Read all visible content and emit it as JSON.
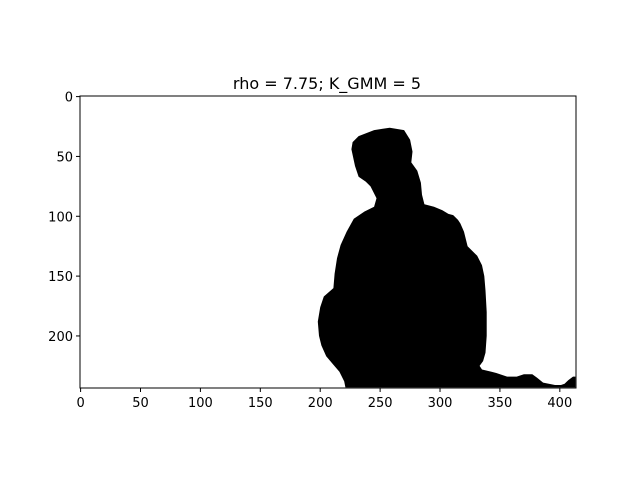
{
  "figure": {
    "title": "rho = 7.75; K_GMM = 5",
    "colors": {
      "background": "#ffffff",
      "mask": "#000000",
      "axis": "#000000"
    }
  },
  "image_extent": {
    "x": [
      -0.5,
      413.5
    ],
    "y": [
      243.5,
      -0.5
    ]
  },
  "x_ticks": [
    {
      "value": 0,
      "label": "0"
    },
    {
      "value": 50,
      "label": "50"
    },
    {
      "value": 100,
      "label": "100"
    },
    {
      "value": 150,
      "label": "150"
    },
    {
      "value": 200,
      "label": "200"
    },
    {
      "value": 250,
      "label": "250"
    },
    {
      "value": 300,
      "label": "300"
    },
    {
      "value": 350,
      "label": "350"
    },
    {
      "value": 400,
      "label": "400"
    }
  ],
  "y_ticks": [
    {
      "value": 0,
      "label": "0"
    },
    {
      "value": 50,
      "label": "50"
    },
    {
      "value": 100,
      "label": "100"
    },
    {
      "value": 150,
      "label": "150"
    },
    {
      "value": 200,
      "label": "200"
    }
  ],
  "mask_outline": [
    [
      221,
      243
    ],
    [
      220,
      238
    ],
    [
      216,
      230
    ],
    [
      211,
      224
    ],
    [
      205,
      217
    ],
    [
      201,
      208
    ],
    [
      199,
      200
    ],
    [
      198,
      188
    ],
    [
      200,
      176
    ],
    [
      203,
      167
    ],
    [
      211,
      160
    ],
    [
      212,
      148
    ],
    [
      214,
      135
    ],
    [
      217,
      124
    ],
    [
      222,
      113
    ],
    [
      228,
      102
    ],
    [
      237,
      96
    ],
    [
      245,
      92
    ],
    [
      247,
      85
    ],
    [
      242,
      75
    ],
    [
      238,
      71
    ],
    [
      232,
      67
    ],
    [
      229,
      58
    ],
    [
      226,
      44
    ],
    [
      227,
      38
    ],
    [
      232,
      33
    ],
    [
      245,
      28
    ],
    [
      258,
      26
    ],
    [
      270,
      28
    ],
    [
      275,
      36
    ],
    [
      277,
      46
    ],
    [
      276,
      55
    ],
    [
      281,
      62
    ],
    [
      284,
      72
    ],
    [
      285,
      82
    ],
    [
      287,
      90
    ],
    [
      295,
      92
    ],
    [
      302,
      95
    ],
    [
      307,
      98
    ],
    [
      311,
      99
    ],
    [
      315,
      103
    ],
    [
      317,
      106
    ],
    [
      320,
      113
    ],
    [
      323,
      125
    ],
    [
      331,
      133
    ],
    [
      335,
      141
    ],
    [
      337,
      150
    ],
    [
      338,
      162
    ],
    [
      339,
      180
    ],
    [
      339,
      200
    ],
    [
      338,
      214
    ],
    [
      336,
      221
    ],
    [
      333,
      225
    ],
    [
      335,
      228
    ],
    [
      343,
      230
    ],
    [
      347,
      231
    ],
    [
      356,
      234
    ],
    [
      364,
      234
    ],
    [
      370,
      232
    ],
    [
      377,
      232
    ],
    [
      381,
      235
    ],
    [
      386,
      239
    ],
    [
      396,
      241
    ],
    [
      401,
      241
    ],
    [
      404,
      240
    ],
    [
      407,
      237
    ],
    [
      411,
      234
    ],
    [
      413,
      234
    ],
    [
      413,
      243
    ]
  ]
}
